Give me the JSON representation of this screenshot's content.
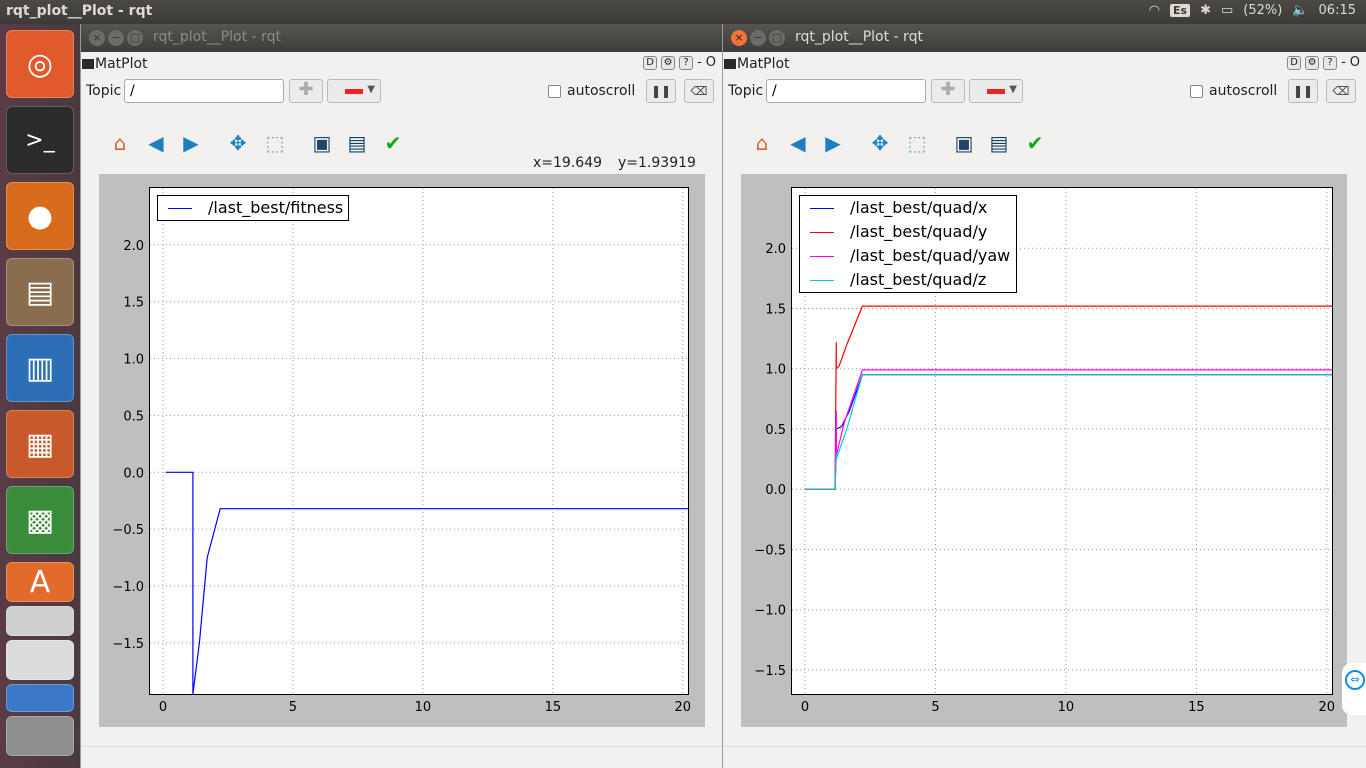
{
  "desktop": {
    "active_title": "rqt_plot__Plot - rqt",
    "tray": {
      "keyboard": "Es",
      "battery": "(52%)",
      "time": "06:15"
    }
  },
  "launcher": {
    "items": [
      "ubuntu-dash",
      "terminal",
      "firefox",
      "files",
      "writer",
      "impress",
      "calc",
      "software-center",
      "amazon",
      "more-apps"
    ]
  },
  "windows": [
    {
      "title": "rqt_plot__Plot - rqt",
      "plugin_label": "MatPlot",
      "topic_label": "Topic",
      "topic_value": "/",
      "autoscroll_label": "autoscroll",
      "coords": {
        "x": "x=19.649",
        "y": "y=1.93919"
      },
      "right_controls": "D⚙? - O",
      "chart_data": {
        "type": "line",
        "xlim": [
          -0.5,
          20.2
        ],
        "ylim": [
          -1.95,
          2.5
        ],
        "xticks": [
          "0",
          "5",
          "10",
          "15",
          "20"
        ],
        "xtick_values": [
          0,
          5,
          10,
          15,
          20
        ],
        "yticks": [
          "2.0",
          "1.5",
          "1.0",
          "0.5",
          "0.0",
          "−0.5",
          "−1.0",
          "−1.5"
        ],
        "ytick_values": [
          2.0,
          1.5,
          1.0,
          0.5,
          0.0,
          -0.5,
          -1.0,
          -1.5
        ],
        "grid": true,
        "legend_position": "top-left",
        "series": [
          {
            "name": "/last_best/fitness",
            "color": "#0000ff",
            "x": [
              0.1,
              1.15,
              1.15,
              1.4,
              1.7,
              2.2,
              20.2
            ],
            "y": [
              0.0,
              0.0,
              -1.95,
              -1.5,
              -0.75,
              -0.32,
              -0.32
            ]
          }
        ]
      }
    },
    {
      "title": "rqt_plot__Plot - rqt",
      "plugin_label": "MatPlot",
      "topic_label": "Topic",
      "topic_value": "/",
      "autoscroll_label": "autoscroll",
      "right_controls": "D⚙? - O",
      "chart_data": {
        "type": "line",
        "xlim": [
          -0.5,
          20.2
        ],
        "ylim": [
          -1.7,
          2.5
        ],
        "xticks": [
          "0",
          "5",
          "10",
          "15",
          "20"
        ],
        "xtick_values": [
          0,
          5,
          10,
          15,
          20
        ],
        "yticks": [
          "2.0",
          "1.5",
          "1.0",
          "0.5",
          "0.0",
          "−0.5",
          "−1.0",
          "−1.5"
        ],
        "ytick_values": [
          2.0,
          1.5,
          1.0,
          0.5,
          0.0,
          -0.5,
          -1.0,
          -1.5
        ],
        "grid": true,
        "legend_position": "top-left",
        "series": [
          {
            "name": "/last_best/quad/x",
            "color": "#0000ff",
            "x": [
              0,
              1.15,
              1.2,
              1.2,
              1.4,
              1.7,
              2.2,
              20.2
            ],
            "y": [
              0,
              0,
              0.3,
              0.5,
              0.52,
              0.65,
              0.95,
              0.95
            ]
          },
          {
            "name": "/last_best/quad/y",
            "color": "#ff0000",
            "x": [
              0,
              1.15,
              1.2,
              1.2,
              1.3,
              1.6,
              2.2,
              20.2
            ],
            "y": [
              0,
              0,
              1.22,
              1.0,
              1.02,
              1.2,
              1.52,
              1.52
            ]
          },
          {
            "name": "/last_best/quad/yaw",
            "color": "#ff00ff",
            "x": [
              0,
              1.15,
              1.2,
              1.2,
              1.5,
              2.2,
              20.2
            ],
            "y": [
              0,
              0,
              0.65,
              0.28,
              0.55,
              0.99,
              0.99
            ]
          },
          {
            "name": "/last_best/quad/z",
            "color": "#00cccc",
            "x": [
              0,
              1.15,
              1.2,
              1.2,
              1.6,
              2.2,
              20.2
            ],
            "y": [
              0,
              0,
              0.3,
              0.25,
              0.5,
              0.95,
              0.95
            ]
          }
        ]
      }
    }
  ]
}
